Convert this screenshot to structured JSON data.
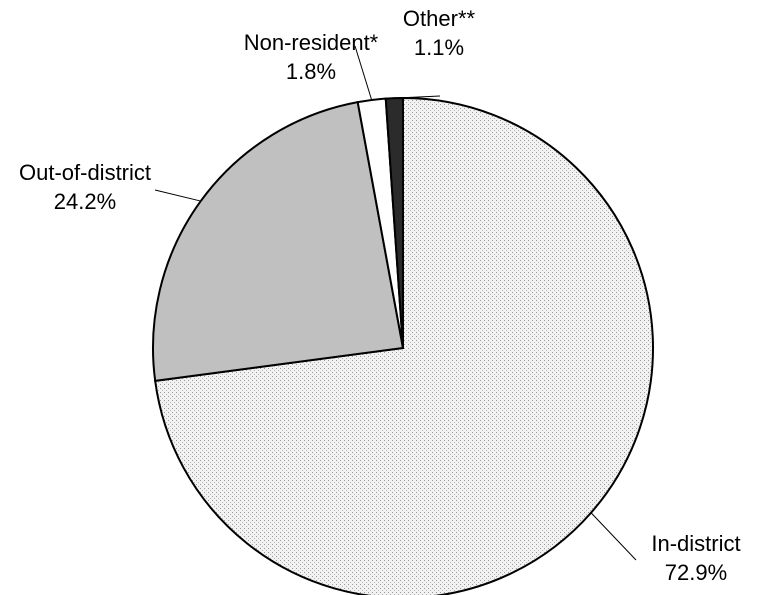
{
  "chart_data": {
    "type": "pie",
    "title": "",
    "slices": [
      {
        "label": "In-district",
        "value": 72.9,
        "display": "72.9%",
        "fill": "#efefef",
        "pattern": "dots"
      },
      {
        "label": "Out-of-district",
        "value": 24.2,
        "display": "24.2%",
        "fill": "#c0c0c0",
        "pattern": "none"
      },
      {
        "label": "Non-resident*",
        "value": 1.8,
        "display": "1.8%",
        "fill": "#ffffff",
        "pattern": "none"
      },
      {
        "label": "Other**",
        "value": 1.1,
        "display": "1.1%",
        "fill": "#2b2b2b",
        "pattern": "none"
      }
    ],
    "start": "12 o'clock",
    "direction": "clockwise",
    "legend": "none",
    "outline_color": "#000000"
  }
}
